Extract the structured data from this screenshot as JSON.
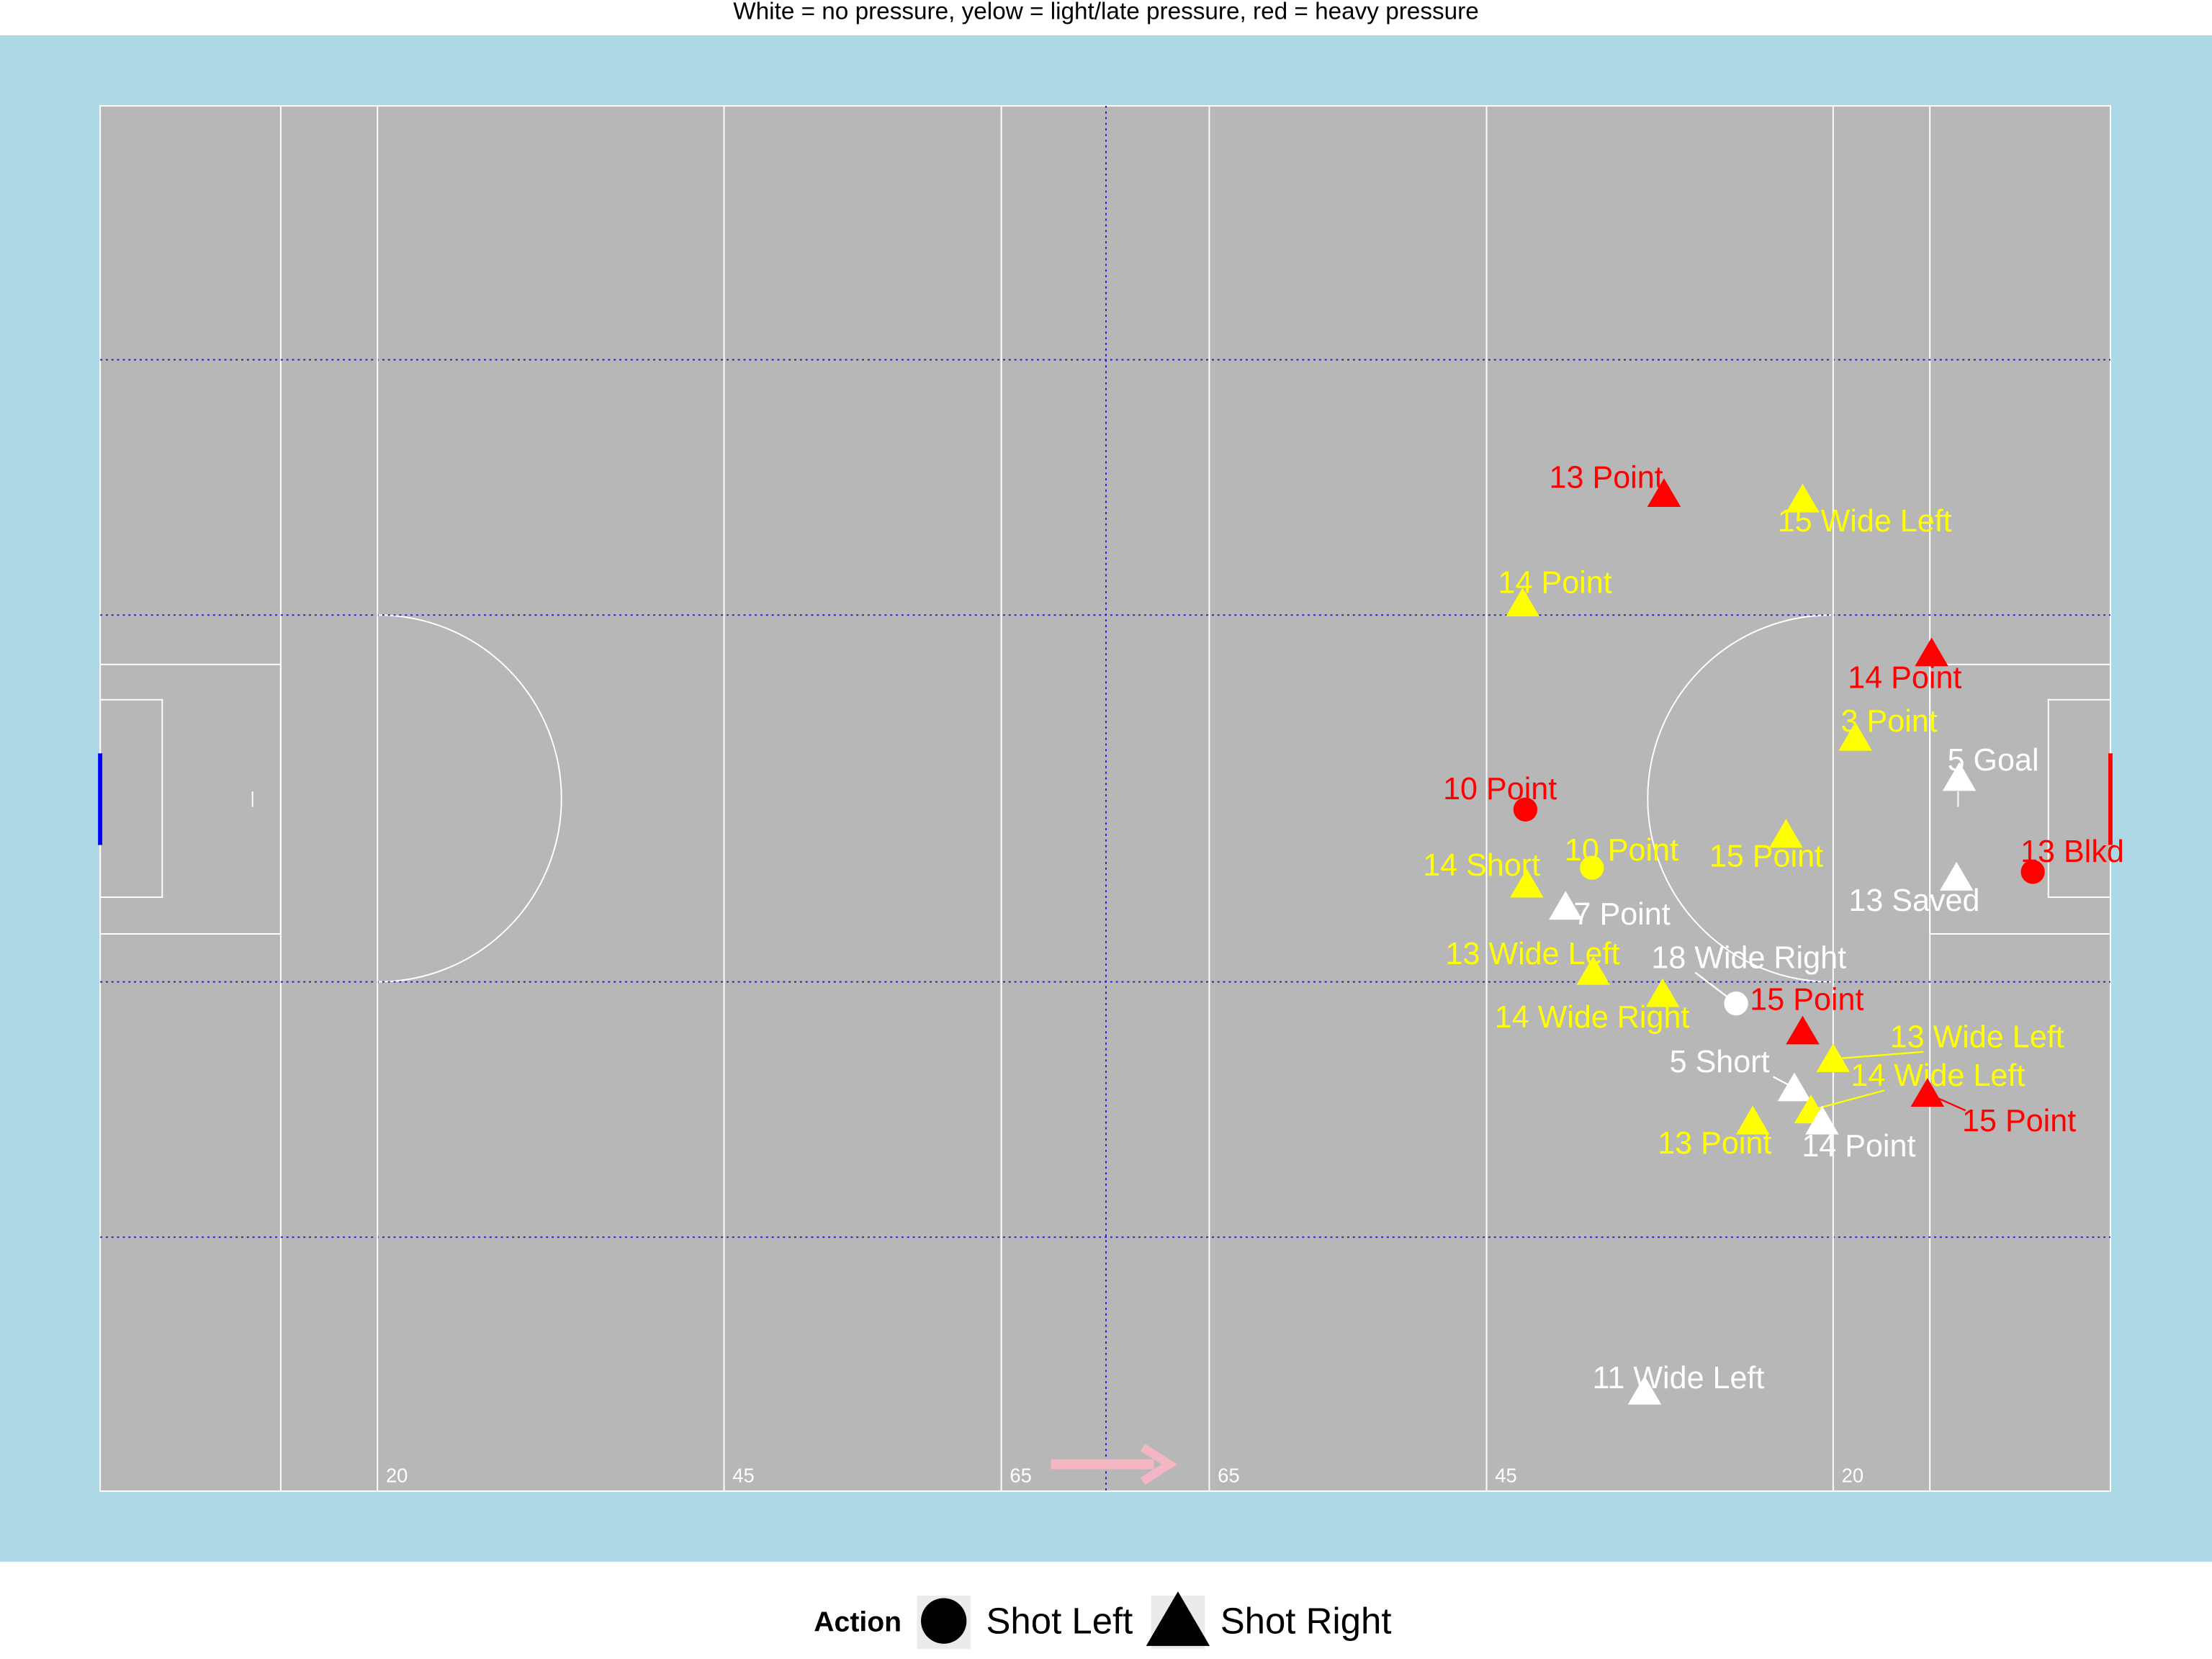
{
  "chart_data": {
    "type": "scatter",
    "title": "White = no pressure, yelow = light/late pressure, red = heavy pressure",
    "xlim": [
      0,
      145
    ],
    "ylim": [
      0,
      100
    ],
    "xticks": [
      20,
      45,
      65,
      {
        "value": 80,
        "label": "65"
      },
      {
        "value": 100,
        "label": "45"
      },
      {
        "value": 125,
        "label": "20"
      }
    ],
    "legend_title": "Action",
    "legend": [
      "Shot Left",
      "Shot Right"
    ],
    "x": [
      112.8,
      122.8,
      102.6,
      132.1,
      126.6,
      134.1,
      102.8,
      121.6,
      107.6,
      139.4,
      133.9,
      102.9,
      105.7,
      107.7,
      112.7,
      118.0,
      122.8,
      125.0,
      122.2,
      123.4,
      131.8,
      119.2,
      124.2,
      111.4
    ],
    "y": [
      72.0,
      71.6,
      64.1,
      60.5,
      54.4,
      51.5,
      49.2,
      47.4,
      45.0,
      44.7,
      44.3,
      43.8,
      42.2,
      37.5,
      35.9,
      35.2,
      33.2,
      31.2,
      29.1,
      27.5,
      28.7,
      26.7,
      26.7,
      7.2
    ],
    "labels": [
      "13 Point",
      "15 Wide Left",
      "14 Point",
      "14 Point",
      "3 Point",
      "5 Goal",
      "10 Point",
      "15 Point",
      "10 Point",
      "13 Blkd",
      "13 Saved",
      "14 Short",
      "7 Point",
      "13 Wide Left",
      "14 Wide Right",
      "18 Wide Right",
      "15 Point",
      "13 Wide Left",
      "5 Short",
      "14 Wide Left",
      "15 Point",
      "13 Point",
      "14 Point",
      "11 Wide Left"
    ],
    "action": [
      "Shot Right",
      "Shot Right",
      "Shot Right",
      "Shot Right",
      "Shot Right",
      "Shot Right",
      "Shot Left",
      "Shot Right",
      "Shot Left",
      "Shot Left",
      "Shot Right",
      "Shot Right",
      "Shot Right",
      "Shot Right",
      "Shot Right",
      "Shot Left",
      "Shot Right",
      "Shot Right",
      "Shot Right",
      "Shot Right",
      "Shot Right",
      "Shot Right",
      "Shot Right",
      "Shot Right"
    ],
    "colors": [
      "#ff0000",
      "#ffff00",
      "#ffff00",
      "#ff0000",
      "#ffff00",
      "#ffffff",
      "#ff0000",
      "#ffff00",
      "#ffff00",
      "#ff0000",
      "#ffffff",
      "#ffff00",
      "#ffffff",
      "#ffff00",
      "#ffff00",
      "#ffffff",
      "#ff0000",
      "#ffff00",
      "#ffffff",
      "#ffff00",
      "#ff0000",
      "#ffff00",
      "#ffffff",
      "#ffffff"
    ]
  }
}
